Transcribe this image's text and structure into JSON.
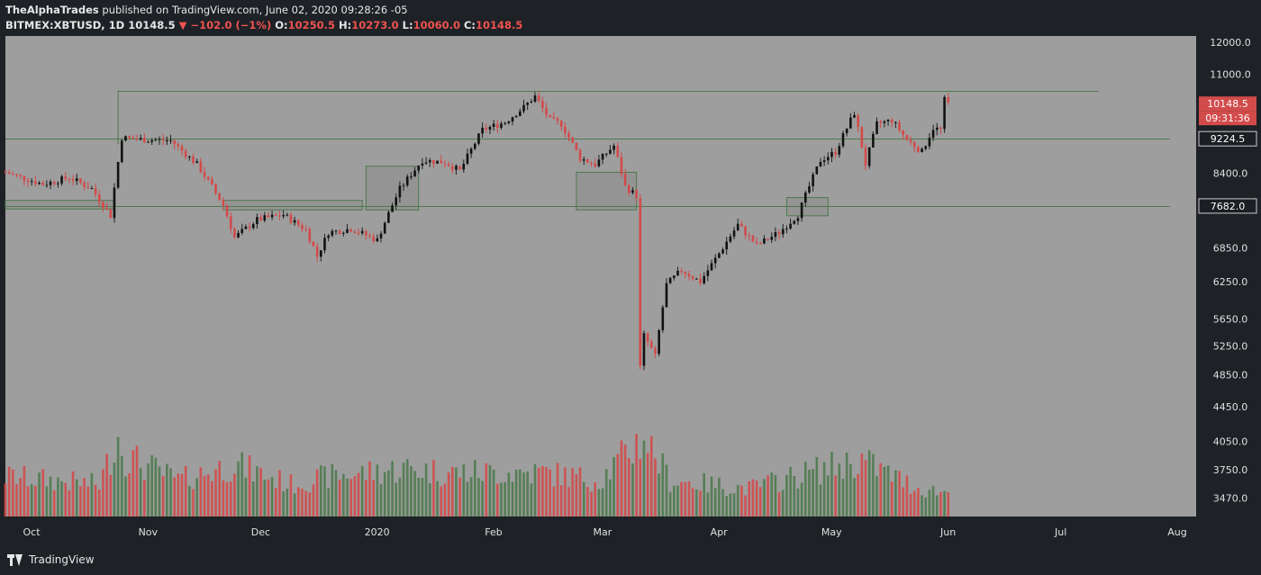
{
  "header": {
    "publisher": "TheAlphaTrades",
    "published_text": "published on TradingView.com, June 02, 2020 09:28:26 -05",
    "symbol": "BITMEX:XBTUSD, 1D",
    "last_price": "10148.5",
    "change": "−102.0 (−1%)",
    "open_label": "O:",
    "open": "10250.5",
    "high_label": "H:",
    "high": "10273.0",
    "low_label": "L:",
    "low": "10060.0",
    "close_label": "C:",
    "close": "10148.5"
  },
  "footer": {
    "brand": "TradingView"
  },
  "colors": {
    "up": "#4e7a4e",
    "down": "#d34a4a",
    "plot_bg": "#9e9e9e",
    "panel_bg": "#1e2126",
    "level_line": "#4c7a4c",
    "badge_red": "#d24b4b",
    "badge_dark": "#1b1e23"
  },
  "chart_data": {
    "type": "candlestick",
    "symbol": "BITMEX:XBTUSD",
    "interval": "1D",
    "y_scale": "log",
    "ylim": [
      3300,
      12200
    ],
    "xlim": [
      "2019-09-25",
      "2020-08-07"
    ],
    "y_ticks": [
      12000,
      11000,
      9224.5,
      8400,
      7682,
      6850,
      6250,
      5650,
      5250,
      4850,
      4450,
      4050,
      3750,
      3470
    ],
    "y_tick_labels": [
      "12000.0",
      "11000.0",
      "9224.5",
      "8400.0",
      "7682.0",
      "6850.0",
      "6250.0",
      "5650.0",
      "5250.0",
      "4850.0",
      "4450.0",
      "4050.0",
      "3750.0",
      "3470.0"
    ],
    "x_tick_labels": [
      {
        "label": "Oct",
        "date": "2019-10-01"
      },
      {
        "label": "Nov",
        "date": "2019-11-01"
      },
      {
        "label": "Dec",
        "date": "2019-12-01"
      },
      {
        "label": "2020",
        "date": "2020-01-01"
      },
      {
        "label": "Feb",
        "date": "2020-02-01"
      },
      {
        "label": "Mar",
        "date": "2020-03-01"
      },
      {
        "label": "Apr",
        "date": "2020-04-01"
      },
      {
        "label": "May",
        "date": "2020-05-01"
      },
      {
        "label": "Jun",
        "date": "2020-06-01"
      },
      {
        "label": "Jul",
        "date": "2020-07-01"
      },
      {
        "label": "Aug",
        "date": "2020-08-01"
      }
    ],
    "price_badges": [
      {
        "label": "10148.5",
        "price": 10148.5,
        "style": "red"
      },
      {
        "label": "09:31:36",
        "style": "red-sub"
      },
      {
        "label": "9224.5",
        "price": 9224.5,
        "style": "dark"
      },
      {
        "label": "7682.0",
        "price": 7682,
        "style": "dark"
      }
    ],
    "horizontal_levels": [
      {
        "price": 10520,
        "from": "2019-10-25",
        "to": "2020-07-12"
      },
      {
        "price": 9224.5,
        "from": "2019-09-25",
        "to": "2020-07-31"
      },
      {
        "price": 7682,
        "from": "2019-09-25",
        "to": "2020-07-31"
      }
    ],
    "zones": [
      {
        "from": "2019-09-25",
        "to": "2019-10-24",
        "low": 7620,
        "high": 7800
      },
      {
        "from": "2019-11-22",
        "to": "2019-12-29",
        "low": 7600,
        "high": 7800
      },
      {
        "from": "2019-12-30",
        "to": "2020-01-13",
        "low": 7600,
        "high": 8560
      },
      {
        "from": "2020-02-24",
        "to": "2020-03-11",
        "low": 7600,
        "high": 8420
      },
      {
        "from": "2020-04-20",
        "to": "2020-05-01",
        "low": 7480,
        "high": 7860
      }
    ],
    "ohlc_keypoints": [
      [
        "2019-09-25",
        8420
      ],
      [
        "2019-10-05",
        8150
      ],
      [
        "2019-10-12",
        8300
      ],
      [
        "2019-10-18",
        8050
      ],
      [
        "2019-10-23",
        7480
      ],
      [
        "2019-10-26",
        9250
      ],
      [
        "2019-11-01",
        9200
      ],
      [
        "2019-11-08",
        9180
      ],
      [
        "2019-11-15",
        8600
      ],
      [
        "2019-11-22",
        7700
      ],
      [
        "2019-11-25",
        7050
      ],
      [
        "2019-12-01",
        7400
      ],
      [
        "2019-12-08",
        7500
      ],
      [
        "2019-12-14",
        7200
      ],
      [
        "2019-12-17",
        6700
      ],
      [
        "2019-12-20",
        7150
      ],
      [
        "2019-12-26",
        7220
      ],
      [
        "2020-01-02",
        7000
      ],
      [
        "2020-01-08",
        8050
      ],
      [
        "2020-01-14",
        8700
      ],
      [
        "2020-01-20",
        8650
      ],
      [
        "2020-01-24",
        8450
      ],
      [
        "2020-01-30",
        9450
      ],
      [
        "2020-02-05",
        9650
      ],
      [
        "2020-02-10",
        10050
      ],
      [
        "2020-02-13",
        10350
      ],
      [
        "2020-02-17",
        9700
      ],
      [
        "2020-02-20",
        9600
      ],
      [
        "2020-02-25",
        8750
      ],
      [
        "2020-02-29",
        8600
      ],
      [
        "2020-03-05",
        9050
      ],
      [
        "2020-03-08",
        8100
      ],
      [
        "2020-03-11",
        7900
      ],
      [
        "2020-03-12",
        4950
      ],
      [
        "2020-03-13",
        5400
      ],
      [
        "2020-03-16",
        5100
      ],
      [
        "2020-03-19",
        6200
      ],
      [
        "2020-03-23",
        6450
      ],
      [
        "2020-03-28",
        6250
      ],
      [
        "2020-04-02",
        6750
      ],
      [
        "2020-04-07",
        7300
      ],
      [
        "2020-04-12",
        6900
      ],
      [
        "2020-04-18",
        7150
      ],
      [
        "2020-04-23",
        7500
      ],
      [
        "2020-04-29",
        8700
      ],
      [
        "2020-05-03",
        8900
      ],
      [
        "2020-05-08",
        9900
      ],
      [
        "2020-05-11",
        8600
      ],
      [
        "2020-05-14",
        9600
      ],
      [
        "2020-05-18",
        9700
      ],
      [
        "2020-05-22",
        9200
      ],
      [
        "2020-05-26",
        8900
      ],
      [
        "2020-05-29",
        9500
      ],
      [
        "2020-05-31",
        9450
      ],
      [
        "2020-06-01",
        10250
      ],
      [
        "2020-06-02",
        10148.5
      ]
    ],
    "volume_keypoints": [
      [
        "2019-09-25",
        0.5
      ],
      [
        "2019-10-20",
        0.4
      ],
      [
        "2019-10-25",
        1.0
      ],
      [
        "2019-10-27",
        0.75
      ],
      [
        "2019-11-10",
        0.45
      ],
      [
        "2019-11-25",
        0.65
      ],
      [
        "2019-12-10",
        0.4
      ],
      [
        "2019-12-20",
        0.5
      ],
      [
        "2020-01-10",
        0.6
      ],
      [
        "2020-01-20",
        0.55
      ],
      [
        "2020-02-15",
        0.55
      ],
      [
        "2020-03-01",
        0.45
      ],
      [
        "2020-03-12",
        0.95
      ],
      [
        "2020-03-13",
        1.0
      ],
      [
        "2020-03-20",
        0.45
      ],
      [
        "2020-04-10",
        0.35
      ],
      [
        "2020-04-30",
        0.6
      ],
      [
        "2020-05-10",
        0.7
      ],
      [
        "2020-05-25",
        0.35
      ],
      [
        "2020-06-02",
        0.3
      ]
    ]
  }
}
